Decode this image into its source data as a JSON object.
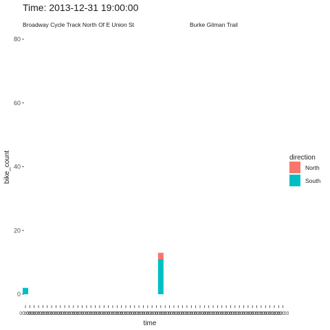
{
  "chart_data": {
    "type": "bar",
    "stacked": true,
    "title": "Time: 2013-12-31 19:00:00",
    "facets": [
      "Broadway Cycle Track North Of E Union St",
      "Burke Gilman Trail"
    ],
    "xlabel": "time",
    "ylabel": "bike_count",
    "ylim": [
      0,
      80
    ],
    "yticks": [
      0,
      20,
      40,
      60,
      80
    ],
    "x_tick_label": "00:00",
    "x_tick_count": 60,
    "grid": false,
    "legend": {
      "title": "direction",
      "placement": "right",
      "entries": [
        "North",
        "South"
      ]
    },
    "colors": {
      "North": "#F8766D",
      "South": "#00BFC4",
      "axis_text": "#4d4d4d",
      "tick": "#333333"
    },
    "series": [
      {
        "name": "North",
        "x_index": [
          0,
          31
        ],
        "values": [
          0,
          2
        ]
      },
      {
        "name": "South",
        "x_index": [
          0,
          31
        ],
        "values": [
          2,
          11
        ]
      }
    ]
  }
}
